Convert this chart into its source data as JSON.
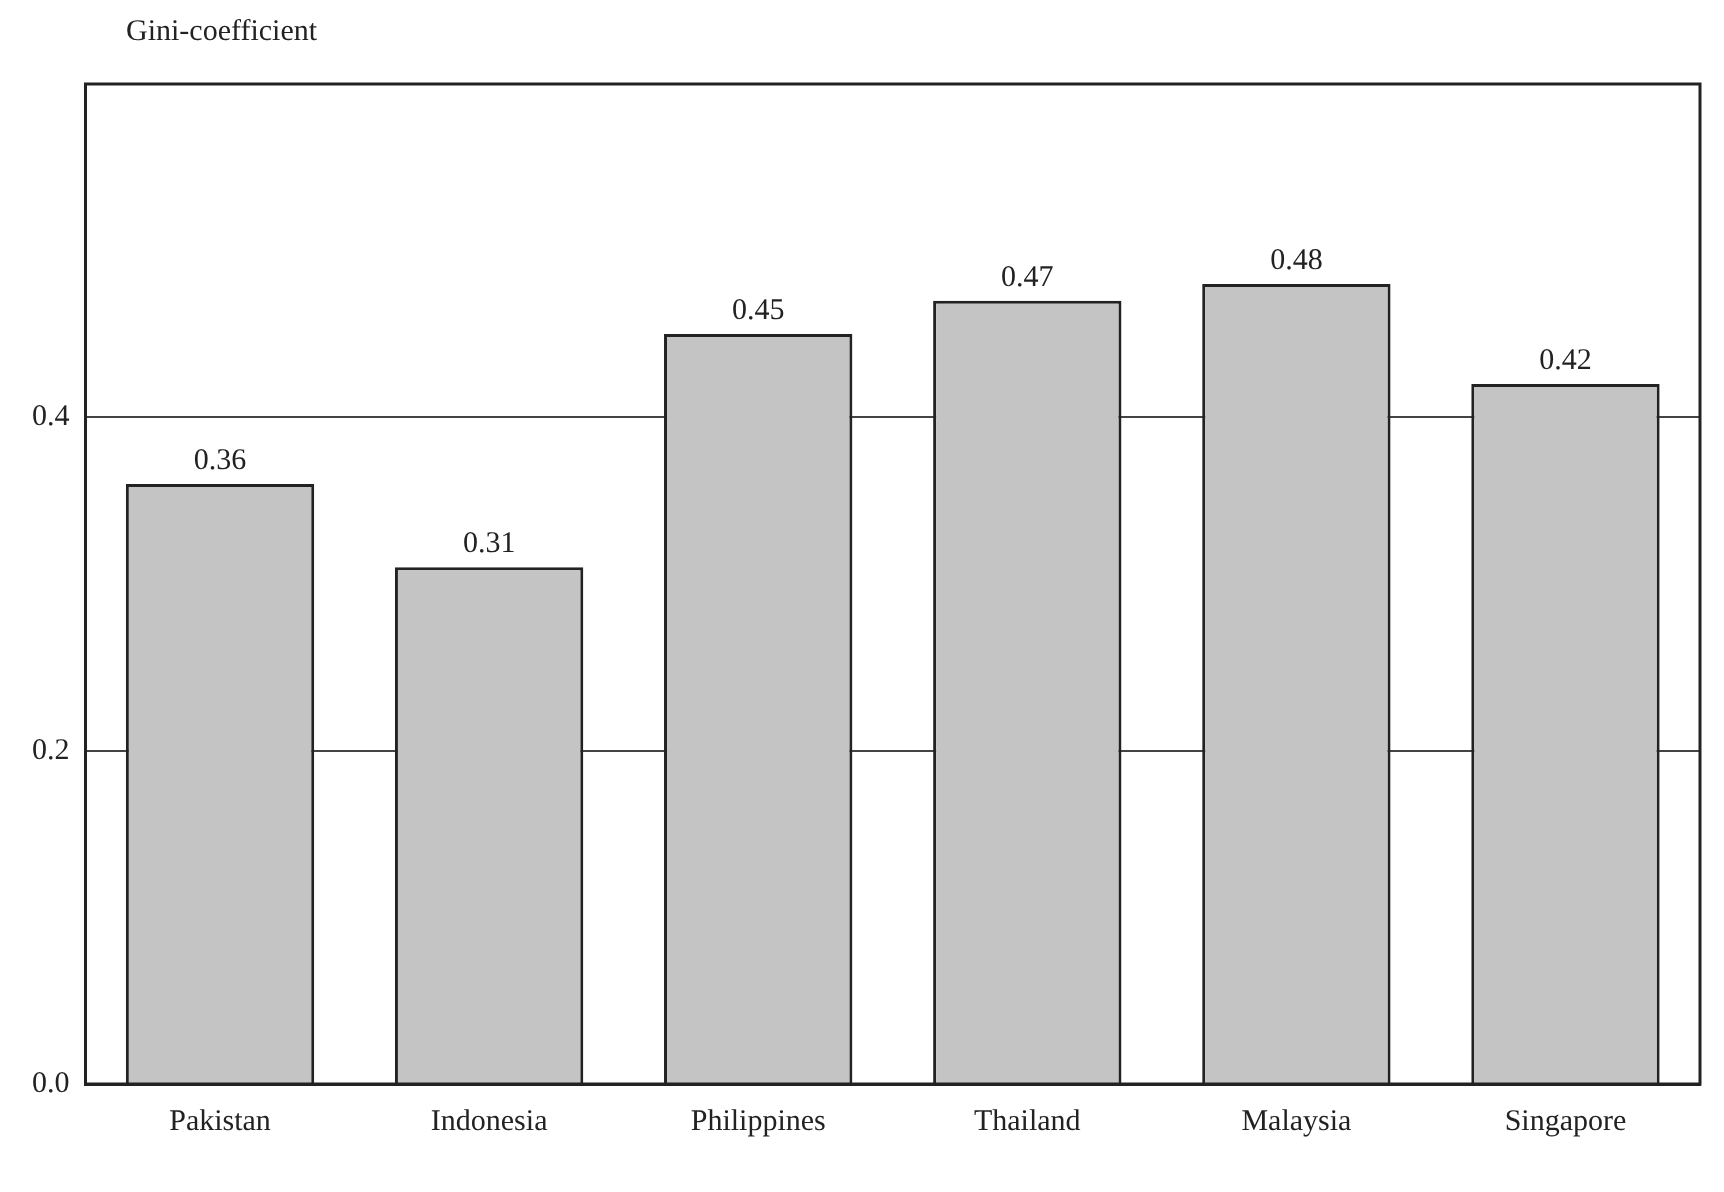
{
  "chart_data": {
    "type": "bar",
    "ylabel": "Gini-coefficient",
    "categories": [
      "Pakistan",
      "Indonesia",
      "Philippines",
      "Thailand",
      "Malaysia",
      "Singapore"
    ],
    "values": [
      0.36,
      0.31,
      0.45,
      0.47,
      0.48,
      0.42
    ],
    "color": "#c4c4c4",
    "ylim": [
      0,
      0.6
    ],
    "yticks": [
      {
        "value": 0,
        "label": "0.0"
      },
      {
        "value": 0.2,
        "label": "0.2"
      },
      {
        "value": 0.4,
        "label": "0.4"
      }
    ],
    "grid": "y",
    "data_labels": true,
    "legend": false
  }
}
